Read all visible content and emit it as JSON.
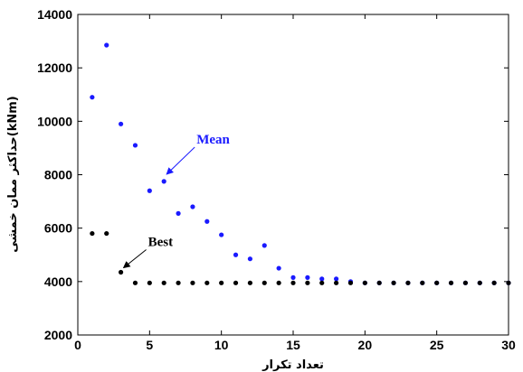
{
  "chart_data": {
    "type": "scatter",
    "xlabel": "تعداد تکرار",
    "ylabel": "حداکثر ممان خمشی(kNm)",
    "xlim": [
      0,
      30
    ],
    "ylim": [
      2000,
      14000
    ],
    "x_ticks": [
      0,
      5,
      10,
      15,
      20,
      25,
      30
    ],
    "y_ticks": [
      2000,
      4000,
      6000,
      8000,
      10000,
      12000,
      14000
    ],
    "grid": false,
    "series": [
      {
        "name": "Mean",
        "color": "#1a1aff",
        "x": [
          1,
          2,
          3,
          4,
          5,
          6,
          7,
          8,
          9,
          10,
          11,
          12,
          13,
          14,
          15,
          16,
          17,
          18,
          19,
          20,
          21,
          22,
          23,
          24,
          25,
          26,
          27,
          28,
          29,
          30
        ],
        "y": [
          10900,
          12850,
          9900,
          9100,
          7400,
          7750,
          6550,
          6800,
          6250,
          5750,
          5000,
          4850,
          5350,
          4500,
          4150,
          4150,
          4100,
          4100,
          4000,
          3950,
          3950,
          3950,
          3950,
          3950,
          3950,
          3950,
          3950,
          3950,
          3950,
          3950
        ]
      },
      {
        "name": "Best",
        "color": "#000000",
        "x": [
          1,
          2,
          3,
          4,
          5,
          6,
          7,
          8,
          9,
          10,
          11,
          12,
          13,
          14,
          15,
          16,
          17,
          18,
          19,
          20,
          21,
          22,
          23,
          24,
          25,
          26,
          27,
          28,
          29,
          30
        ],
        "y": [
          5800,
          5800,
          4350,
          3950,
          3950,
          3950,
          3950,
          3950,
          3950,
          3950,
          3950,
          3950,
          3950,
          3950,
          3950,
          3950,
          3950,
          3950,
          3950,
          3950,
          3950,
          3950,
          3950,
          3950,
          3950,
          3950,
          3950,
          3950,
          3950,
          3950
        ]
      }
    ],
    "annotations": [
      {
        "text": "Mean",
        "color": "#1a1aff",
        "point": [
          6,
          7950
        ]
      },
      {
        "text": "Best",
        "color": "#000000",
        "point": [
          3,
          4450
        ]
      }
    ]
  }
}
